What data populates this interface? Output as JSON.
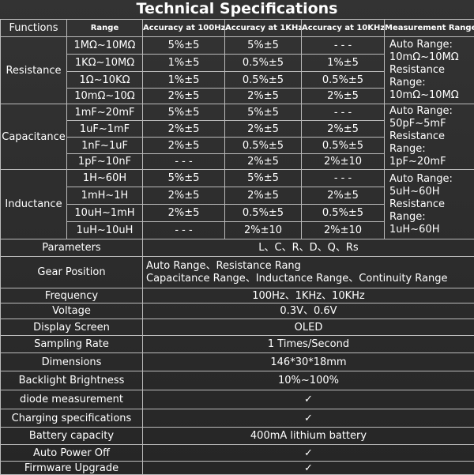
{
  "title": "Technical Specifications",
  "header": [
    "Functions",
    "Range",
    "Accuracy at 100Hz",
    "Accuracy at 1KHz",
    "Accuracy at 10KHz",
    "Measurement Range"
  ],
  "groups": [
    {
      "function": "Resistance",
      "rows": [
        [
          "1MΩ~10MΩ",
          "5%±5",
          "5%±5",
          "- - -"
        ],
        [
          "1KΩ~10MΩ",
          "1%±5",
          "0.5%±5",
          "1%±5"
        ],
        [
          "1Ω~10KΩ",
          "1%±5",
          "0.5%±5",
          "0.5%±5"
        ],
        [
          "10mΩ~10Ω",
          "2%±5",
          "2%±5",
          "2%±5"
        ]
      ],
      "measurement_range": [
        "Auto Range:",
        "10mΩ~10MΩ",
        "Resistance",
        "Range:",
        "10mΩ~10MΩ"
      ]
    },
    {
      "function": "Capacitance",
      "rows": [
        [
          "1mF~20mF",
          "5%±5",
          "5%±5",
          "- - -"
        ],
        [
          "1uF~1mF",
          "2%±5",
          "2%±5",
          "2%±5"
        ],
        [
          "1nF~1uF",
          "2%±5",
          "0.5%±5",
          "0.5%±5"
        ],
        [
          "1pF~10nF",
          "- - -",
          "2%±5",
          "2%±10"
        ]
      ],
      "measurement_range": [
        "Auto Range:",
        "50pF~5mF",
        "Resistance",
        "Range:",
        "1pF~20mF"
      ]
    },
    {
      "function": "Inductance",
      "rows": [
        [
          "1H~60H",
          "5%±5",
          "5%±5",
          "- - -"
        ],
        [
          "1mH~1H",
          "2%±5",
          "2%±5",
          "2%±5"
        ],
        [
          "10uH~1mH",
          "2%±5",
          "0.5%±5",
          "0.5%±5"
        ],
        [
          "1uH~10uH",
          "- - -",
          "2%±10",
          "2%±10"
        ]
      ],
      "measurement_range": [
        "Auto Range:",
        "5uH~60H",
        "Resistance",
        "Range:",
        "1uH~60H"
      ]
    }
  ],
  "specs": [
    {
      "label": "Parameters",
      "value": [
        "L、C、R、D、Q、Rs"
      ]
    },
    {
      "label": "Gear Position",
      "value": [
        "Auto Range、Resistance Rang",
        "Capacitance Range、Inductance Range、Continuity Range"
      ]
    },
    {
      "label": "Frequency",
      "value": [
        "100Hz、1KHz、10KHz"
      ]
    },
    {
      "label": "Voltage",
      "value": [
        "0.3V、0.6V"
      ]
    },
    {
      "label": "Display Screen",
      "value": [
        "OLED"
      ]
    },
    {
      "label": "Sampling Rate",
      "value": [
        "1 Times/Second"
      ]
    },
    {
      "label": "Dimensions",
      "value": [
        "146*30*18mm"
      ]
    },
    {
      "label": "Backlight Brightness",
      "value": [
        "10%~100%"
      ]
    },
    {
      "label": "diode measurement",
      "value": [
        "✓"
      ]
    },
    {
      "label": "Charging specifications",
      "value": [
        "✓"
      ]
    },
    {
      "label": "Battery capacity",
      "value": [
        "400mA lithium battery"
      ]
    },
    {
      "label": "Auto Power Off",
      "value": [
        "✓"
      ]
    },
    {
      "label": "Firmware Upgrade",
      "value": [
        "✓"
      ]
    }
  ]
}
